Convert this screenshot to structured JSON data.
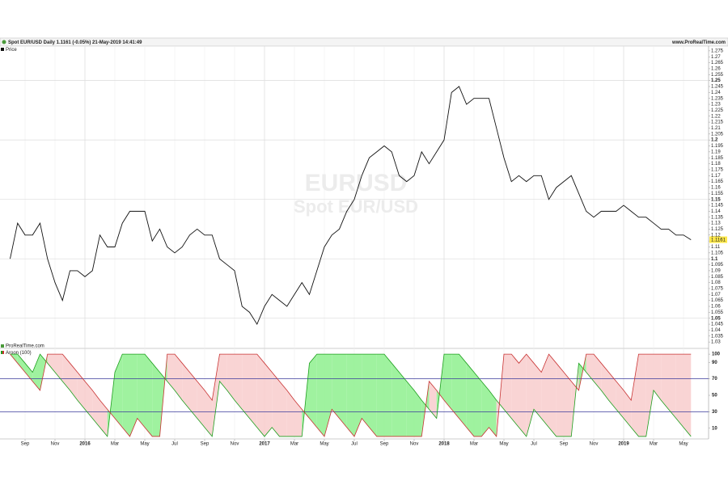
{
  "header": {
    "title": "Spot EUR/USD Daily 1.1161 (-0.05%) 21-May-2019 14:41:49",
    "site": "www.ProRealTime.com"
  },
  "watermark": {
    "symbol": "EURUSD",
    "name": "Spot EUR/USD"
  },
  "chart_data": {
    "type": "line",
    "categories": [
      null,
      null,
      "Sep",
      null,
      null,
      null,
      "Nov",
      null,
      null,
      null,
      "2016",
      null,
      null,
      null,
      "Mar",
      null,
      null,
      null,
      "May",
      null,
      null,
      null,
      "Jul",
      null,
      null,
      null,
      "Sep",
      null,
      null,
      null,
      "Nov",
      null,
      null,
      null,
      "2017",
      null,
      null,
      null,
      "Mar",
      null,
      null,
      null,
      "May",
      null,
      null,
      null,
      "Jul",
      null,
      null,
      null,
      "Sep",
      null,
      null,
      null,
      "Nov",
      null,
      null,
      null,
      "2018",
      null,
      null,
      null,
      "Mar",
      null,
      null,
      null,
      "May",
      null,
      null,
      null,
      "Jul",
      null,
      null,
      null,
      "Sep",
      null,
      null,
      null,
      "Nov",
      null,
      null,
      null,
      "2019",
      null,
      null,
      null,
      "Mar",
      null,
      null,
      null,
      "May",
      null
    ],
    "grid": true,
    "panels": [
      {
        "legend": "Price",
        "ylim": [
          1.026,
          1.279
        ],
        "yticks": [
          1.03,
          1.035,
          1.04,
          1.045,
          1.05,
          1.055,
          1.06,
          1.065,
          1.07,
          1.075,
          1.08,
          1.085,
          1.09,
          1.095,
          1.1,
          1.105,
          1.11,
          1.115,
          1.12,
          1.125,
          1.13,
          1.135,
          1.14,
          1.145,
          1.15,
          1.155,
          1.16,
          1.165,
          1.17,
          1.175,
          1.18,
          1.185,
          1.19,
          1.195,
          1.2,
          1.205,
          1.21,
          1.215,
          1.22,
          1.225,
          1.23,
          1.235,
          1.24,
          1.245,
          1.25,
          1.255,
          1.26,
          1.265,
          1.27,
          1.275
        ],
        "last_value": 1.1161,
        "series": [
          {
            "name": "Price",
            "color": "#111111",
            "values": [
              1.1,
              1.13,
              1.12,
              1.12,
              1.13,
              1.1,
              1.08,
              1.065,
              1.09,
              1.09,
              1.085,
              1.09,
              1.12,
              1.11,
              1.11,
              1.13,
              1.14,
              1.14,
              1.14,
              1.115,
              1.125,
              1.11,
              1.105,
              1.11,
              1.12,
              1.125,
              1.12,
              1.12,
              1.1,
              1.095,
              1.09,
              1.06,
              1.055,
              1.045,
              1.06,
              1.07,
              1.065,
              1.06,
              1.07,
              1.08,
              1.07,
              1.09,
              1.11,
              1.12,
              1.125,
              1.14,
              1.15,
              1.17,
              1.185,
              1.19,
              1.195,
              1.19,
              1.17,
              1.165,
              1.17,
              1.19,
              1.18,
              1.19,
              1.2,
              1.24,
              1.245,
              1.23,
              1.235,
              1.235,
              1.235,
              1.21,
              1.185,
              1.165,
              1.17,
              1.165,
              1.17,
              1.17,
              1.15,
              1.16,
              1.165,
              1.17,
              1.155,
              1.14,
              1.135,
              1.14,
              1.14,
              1.14,
              1.145,
              1.14,
              1.135,
              1.135,
              1.13,
              1.125,
              1.125,
              1.12,
              1.12,
              1.116
            ]
          }
        ]
      },
      {
        "legend": "Aroon (100)",
        "source": "ProRealTime.com",
        "ylim": [
          -3,
          106
        ],
        "yticks": [
          10,
          30,
          50,
          70,
          90,
          100
        ],
        "levels": [
          30,
          70
        ],
        "level_color": "#3b3b9c",
        "series": [
          {
            "name": "Aroon Up",
            "color": "#1d9e1d",
            "values": [
              100,
              100,
              89,
              78,
              100,
              89,
              78,
              67,
              56,
              44,
              33,
              22,
              11,
              0,
              78,
              100,
              100,
              100,
              100,
              89,
              78,
              67,
              56,
              44,
              33,
              22,
              11,
              0,
              67,
              56,
              44,
              33,
              22,
              11,
              0,
              11,
              0,
              0,
              0,
              0,
              89,
              100,
              100,
              100,
              100,
              100,
              100,
              100,
              100,
              100,
              100,
              89,
              78,
              67,
              56,
              44,
              33,
              22,
              100,
              100,
              100,
              89,
              78,
              67,
              56,
              44,
              33,
              22,
              11,
              0,
              33,
              22,
              11,
              0,
              0,
              0,
              89,
              78,
              67,
              56,
              44,
              33,
              22,
              11,
              0,
              0,
              56,
              44,
              33,
              22,
              11,
              0
            ]
          },
          {
            "name": "Aroon Down",
            "color": "#c83232",
            "values": [
              100,
              89,
              78,
              67,
              56,
              100,
              100,
              100,
              89,
              78,
              67,
              56,
              44,
              33,
              22,
              11,
              0,
              22,
              11,
              0,
              0,
              100,
              100,
              89,
              78,
              67,
              56,
              44,
              100,
              100,
              100,
              100,
              100,
              100,
              89,
              78,
              67,
              56,
              44,
              33,
              22,
              11,
              0,
              33,
              22,
              11,
              0,
              22,
              11,
              0,
              0,
              0,
              0,
              0,
              0,
              0,
              67,
              56,
              44,
              33,
              22,
              11,
              0,
              0,
              11,
              0,
              100,
              100,
              89,
              100,
              89,
              78,
              100,
              89,
              78,
              67,
              56,
              100,
              100,
              89,
              78,
              67,
              56,
              44,
              100,
              100,
              100,
              100,
              100,
              100,
              100,
              100
            ]
          }
        ]
      }
    ]
  }
}
